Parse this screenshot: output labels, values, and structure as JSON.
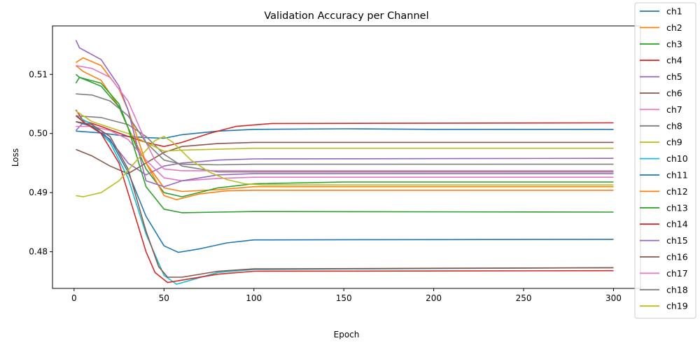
{
  "chart_data": {
    "type": "line",
    "title": "Validation Accuracy per Channel",
    "xlabel": "Epoch",
    "ylabel": "Loss",
    "xlim": [
      -12,
      315
    ],
    "ylim": [
      0.4738,
      0.5182
    ],
    "xticks": [
      "0",
      "50",
      "100",
      "150",
      "200",
      "250",
      "300"
    ],
    "yticks": [
      "0.48",
      "0.49",
      "0.50",
      "0.51"
    ],
    "grid": false,
    "legend_position": "right",
    "series": [
      {
        "name": "ch1",
        "color": "#1f77b4",
        "points": [
          [
            1,
            0.5004
          ],
          [
            15,
            0.5001
          ],
          [
            30,
            0.4995
          ],
          [
            40,
            0.4993
          ],
          [
            50,
            0.4992
          ],
          [
            60,
            0.4998
          ],
          [
            80,
            0.5004
          ],
          [
            100,
            0.5007
          ],
          [
            150,
            0.5008
          ],
          [
            200,
            0.5007
          ],
          [
            300,
            0.5007
          ]
        ]
      },
      {
        "name": "ch2",
        "color": "#ff7f0e",
        "points": [
          [
            1,
            0.5115
          ],
          [
            5,
            0.5105
          ],
          [
            15,
            0.509
          ],
          [
            25,
            0.5045
          ],
          [
            30,
            0.501
          ],
          [
            40,
            0.495
          ],
          [
            50,
            0.4908
          ],
          [
            60,
            0.4902
          ],
          [
            80,
            0.4905
          ],
          [
            100,
            0.491
          ],
          [
            200,
            0.491
          ],
          [
            300,
            0.491
          ]
        ]
      },
      {
        "name": "ch3",
        "color": "#2ca02c",
        "points": [
          [
            1,
            0.51
          ],
          [
            3,
            0.5095
          ],
          [
            15,
            0.508
          ],
          [
            25,
            0.5045
          ],
          [
            30,
            0.501
          ],
          [
            40,
            0.494
          ],
          [
            50,
            0.49
          ],
          [
            60,
            0.4893
          ],
          [
            80,
            0.4908
          ],
          [
            100,
            0.4915
          ],
          [
            150,
            0.4918
          ],
          [
            300,
            0.4918
          ]
        ]
      },
      {
        "name": "ch4",
        "color": "#d62728",
        "points": [
          [
            1,
            0.504
          ],
          [
            5,
            0.5022
          ],
          [
            15,
            0.5012
          ],
          [
            30,
            0.4995
          ],
          [
            40,
            0.4985
          ],
          [
            50,
            0.4978
          ],
          [
            60,
            0.4985
          ],
          [
            75,
            0.5
          ],
          [
            90,
            0.5012
          ],
          [
            110,
            0.5017
          ],
          [
            300,
            0.5018
          ]
        ]
      },
      {
        "name": "ch5",
        "color": "#9467bd",
        "points": [
          [
            1,
            0.5005
          ],
          [
            5,
            0.5018
          ],
          [
            15,
            0.5005
          ],
          [
            25,
            0.497
          ],
          [
            30,
            0.495
          ],
          [
            40,
            0.493
          ],
          [
            50,
            0.4945
          ],
          [
            60,
            0.495
          ],
          [
            80,
            0.4955
          ],
          [
            100,
            0.4957
          ],
          [
            300,
            0.4958
          ]
        ]
      },
      {
        "name": "ch6",
        "color": "#8c564b",
        "points": [
          [
            1,
            0.4973
          ],
          [
            10,
            0.4962
          ],
          [
            20,
            0.4945
          ],
          [
            30,
            0.4932
          ],
          [
            40,
            0.495
          ],
          [
            50,
            0.4968
          ],
          [
            60,
            0.4978
          ],
          [
            80,
            0.4983
          ],
          [
            100,
            0.4985
          ],
          [
            300,
            0.4985
          ]
        ]
      },
      {
        "name": "ch7",
        "color": "#e377c2",
        "points": [
          [
            1,
            0.5012
          ],
          [
            10,
            0.5012
          ],
          [
            20,
            0.5005
          ],
          [
            30,
            0.499
          ],
          [
            40,
            0.4955
          ],
          [
            50,
            0.4925
          ],
          [
            60,
            0.492
          ],
          [
            80,
            0.4924
          ],
          [
            100,
            0.4926
          ],
          [
            300,
            0.4926
          ]
        ]
      },
      {
        "name": "ch8",
        "color": "#7f7f7f",
        "points": [
          [
            1,
            0.503
          ],
          [
            15,
            0.5027
          ],
          [
            30,
            0.5015
          ],
          [
            40,
            0.4995
          ],
          [
            50,
            0.4965
          ],
          [
            60,
            0.4945
          ],
          [
            80,
            0.4935
          ],
          [
            100,
            0.4935
          ],
          [
            300,
            0.4935
          ]
        ]
      },
      {
        "name": "ch9",
        "color": "#bcbd22",
        "points": [
          [
            1,
            0.5038
          ],
          [
            10,
            0.502
          ],
          [
            20,
            0.501
          ],
          [
            30,
            0.5
          ],
          [
            40,
            0.4985
          ],
          [
            50,
            0.497
          ],
          [
            60,
            0.4972
          ],
          [
            100,
            0.4975
          ],
          [
            300,
            0.4975
          ]
        ]
      },
      {
        "name": "ch10",
        "color": "#17becf",
        "points": [
          [
            1,
            0.503
          ],
          [
            10,
            0.5015
          ],
          [
            20,
            0.4985
          ],
          [
            30,
            0.4925
          ],
          [
            40,
            0.483
          ],
          [
            50,
            0.476
          ],
          [
            57,
            0.4745
          ],
          [
            65,
            0.4752
          ],
          [
            80,
            0.4765
          ],
          [
            100,
            0.477
          ],
          [
            300,
            0.4773
          ]
        ]
      },
      {
        "name": "ch11",
        "color": "#1f77b4",
        "points": [
          [
            1,
            0.502
          ],
          [
            10,
            0.5012
          ],
          [
            20,
            0.499
          ],
          [
            30,
            0.4935
          ],
          [
            40,
            0.486
          ],
          [
            50,
            0.481
          ],
          [
            58,
            0.4799
          ],
          [
            70,
            0.4805
          ],
          [
            85,
            0.4815
          ],
          [
            100,
            0.482
          ],
          [
            300,
            0.4821
          ]
        ]
      },
      {
        "name": "ch12",
        "color": "#ff7f0e",
        "points": [
          [
            1,
            0.512
          ],
          [
            5,
            0.5128
          ],
          [
            15,
            0.5115
          ],
          [
            25,
            0.5075
          ],
          [
            30,
            0.504
          ],
          [
            40,
            0.495
          ],
          [
            50,
            0.4895
          ],
          [
            57,
            0.4888
          ],
          [
            70,
            0.4898
          ],
          [
            85,
            0.4903
          ],
          [
            100,
            0.4904
          ],
          [
            300,
            0.4904
          ]
        ]
      },
      {
        "name": "ch13",
        "color": "#2ca02c",
        "points": [
          [
            1,
            0.5085
          ],
          [
            3,
            0.5095
          ],
          [
            15,
            0.5085
          ],
          [
            25,
            0.505
          ],
          [
            30,
            0.501
          ],
          [
            40,
            0.491
          ],
          [
            50,
            0.4872
          ],
          [
            60,
            0.4866
          ],
          [
            80,
            0.4867
          ],
          [
            100,
            0.4868
          ],
          [
            300,
            0.4867
          ]
        ]
      },
      {
        "name": "ch14",
        "color": "#d62728",
        "points": [
          [
            1,
            0.503
          ],
          [
            5,
            0.502
          ],
          [
            15,
            0.5
          ],
          [
            25,
            0.495
          ],
          [
            30,
            0.49
          ],
          [
            40,
            0.48
          ],
          [
            45,
            0.4765
          ],
          [
            52,
            0.4748
          ],
          [
            60,
            0.4752
          ],
          [
            80,
            0.4762
          ],
          [
            100,
            0.4767
          ],
          [
            300,
            0.4768
          ]
        ]
      },
      {
        "name": "ch15",
        "color": "#9467bd",
        "points": [
          [
            1,
            0.5158
          ],
          [
            3,
            0.5145
          ],
          [
            15,
            0.5125
          ],
          [
            25,
            0.508
          ],
          [
            30,
            0.504
          ],
          [
            35,
            0.498
          ],
          [
            40,
            0.492
          ],
          [
            50,
            0.491
          ],
          [
            60,
            0.492
          ],
          [
            80,
            0.493
          ],
          [
            100,
            0.4932
          ],
          [
            300,
            0.4932
          ]
        ]
      },
      {
        "name": "ch16",
        "color": "#8c564b",
        "points": [
          [
            1,
            0.502
          ],
          [
            10,
            0.5015
          ],
          [
            20,
            0.4995
          ],
          [
            30,
            0.494
          ],
          [
            40,
            0.4835
          ],
          [
            47,
            0.4775
          ],
          [
            52,
            0.4757
          ],
          [
            60,
            0.4757
          ],
          [
            80,
            0.4767
          ],
          [
            100,
            0.4771
          ],
          [
            300,
            0.4773
          ]
        ]
      },
      {
        "name": "ch17",
        "color": "#e377c2",
        "points": [
          [
            1,
            0.5115
          ],
          [
            10,
            0.511
          ],
          [
            20,
            0.5095
          ],
          [
            30,
            0.5055
          ],
          [
            40,
            0.4985
          ],
          [
            45,
            0.4955
          ],
          [
            50,
            0.494
          ],
          [
            60,
            0.4937
          ],
          [
            100,
            0.4937
          ],
          [
            300,
            0.4937
          ]
        ]
      },
      {
        "name": "ch18",
        "color": "#7f7f7f",
        "points": [
          [
            1,
            0.5067
          ],
          [
            10,
            0.5065
          ],
          [
            20,
            0.5055
          ],
          [
            30,
            0.503
          ],
          [
            40,
            0.4985
          ],
          [
            50,
            0.4955
          ],
          [
            60,
            0.4948
          ],
          [
            80,
            0.4947
          ],
          [
            100,
            0.4948
          ],
          [
            300,
            0.4948
          ]
        ]
      },
      {
        "name": "ch19",
        "color": "#bcbd22",
        "points": [
          [
            1,
            0.4895
          ],
          [
            5,
            0.4893
          ],
          [
            15,
            0.49
          ],
          [
            25,
            0.492
          ],
          [
            35,
            0.4955
          ],
          [
            45,
            0.4988
          ],
          [
            50,
            0.4995
          ],
          [
            55,
            0.4985
          ],
          [
            65,
            0.4955
          ],
          [
            75,
            0.4935
          ],
          [
            85,
            0.4922
          ],
          [
            95,
            0.4915
          ],
          [
            105,
            0.4913
          ],
          [
            300,
            0.4913
          ]
        ]
      }
    ]
  }
}
